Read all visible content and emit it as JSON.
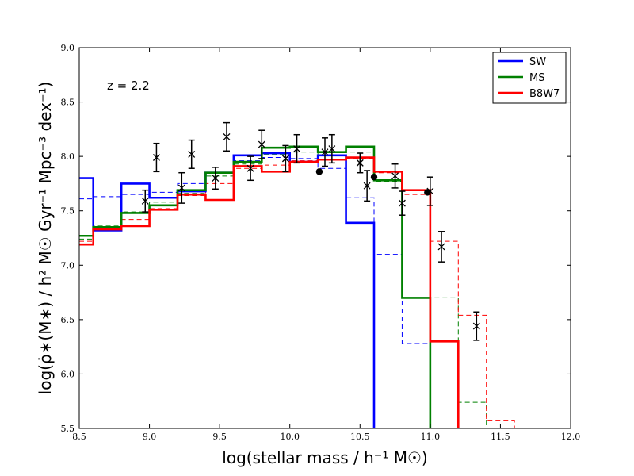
{
  "chart_data": {
    "type": "line",
    "subtype": "step-histogram-with-errorbars",
    "xlabel": "log(stellar mass / h⁻¹ M☉)",
    "ylabel": "log(ρ̇∗(M∗) / h² M☉ Gyr⁻¹ Mpc⁻³ dex⁻¹)",
    "xlim": [
      8.5,
      12.0
    ],
    "ylim": [
      5.5,
      9.0
    ],
    "xticks": [
      "8.5",
      "9.0",
      "9.5",
      "10.0",
      "10.5",
      "11.0",
      "11.5",
      "12.0"
    ],
    "yticks": [
      "5.5",
      "6.0",
      "6.5",
      "7.0",
      "7.5",
      "8.0",
      "8.5",
      "9.0"
    ],
    "annotation": "z = 2.2",
    "legend": {
      "location": "top-right",
      "entries": [
        "SW",
        "MS",
        "B8W7"
      ]
    },
    "series": [
      {
        "name": "SW",
        "style": "solid",
        "color": "#0000ff",
        "bin_edges": [
          8.5,
          8.6,
          8.8,
          9.0,
          9.2,
          9.4,
          9.6,
          9.8,
          10.0,
          10.2,
          10.4,
          10.6
        ],
        "values": [
          7.8,
          7.32,
          7.75,
          7.62,
          7.68,
          7.85,
          8.01,
          8.03,
          7.95,
          8.01,
          7.39
        ]
      },
      {
        "name": "SW-dashed",
        "style": "dashed",
        "color": "#0000ff",
        "bin_edges": [
          8.5,
          8.6,
          8.8,
          9.0,
          9.2,
          9.4,
          9.6,
          9.8,
          10.0,
          10.2,
          10.4,
          10.6,
          10.8,
          11.0
        ],
        "values": [
          7.61,
          7.63,
          7.65,
          7.67,
          7.75,
          7.85,
          7.96,
          7.99,
          7.98,
          7.89,
          7.62,
          7.1,
          6.28
        ]
      },
      {
        "name": "MS",
        "style": "solid",
        "color": "#008000",
        "bin_edges": [
          8.5,
          8.6,
          8.8,
          9.0,
          9.2,
          9.4,
          9.6,
          9.8,
          10.0,
          10.2,
          10.4,
          10.6,
          10.8,
          11.0
        ],
        "values": [
          7.27,
          7.35,
          7.48,
          7.55,
          7.69,
          7.85,
          7.95,
          8.08,
          8.09,
          8.04,
          8.09,
          7.78,
          6.7
        ]
      },
      {
        "name": "MS-dashed",
        "style": "dashed",
        "color": "#008000",
        "bin_edges": [
          8.5,
          8.6,
          8.8,
          9.0,
          9.2,
          9.4,
          9.6,
          9.8,
          10.0,
          10.2,
          10.4,
          10.6,
          10.8,
          11.0,
          11.2,
          11.4
        ],
        "values": [
          7.24,
          7.36,
          7.49,
          7.58,
          7.66,
          7.82,
          7.93,
          8.02,
          8.04,
          8.01,
          8.04,
          7.77,
          7.37,
          6.7,
          5.74
        ]
      },
      {
        "name": "B8W7",
        "style": "solid",
        "color": "#ff0000",
        "bin_edges": [
          8.5,
          8.6,
          8.8,
          9.0,
          9.2,
          9.4,
          9.6,
          9.8,
          10.0,
          10.2,
          10.4,
          10.6,
          10.8,
          11.0,
          11.2
        ],
        "values": [
          7.19,
          7.33,
          7.36,
          7.51,
          7.65,
          7.6,
          7.91,
          7.86,
          7.95,
          7.97,
          7.99,
          7.86,
          7.69,
          6.3
        ]
      },
      {
        "name": "B8W7-dashed",
        "style": "dashed",
        "color": "#ff0000",
        "bin_edges": [
          8.5,
          8.6,
          8.8,
          9.0,
          9.2,
          9.4,
          9.6,
          9.8,
          10.0,
          10.2,
          10.4,
          10.6,
          10.8,
          11.0,
          11.2,
          11.4,
          11.6
        ],
        "values": [
          7.22,
          7.34,
          7.42,
          7.52,
          7.64,
          7.75,
          7.89,
          7.92,
          7.96,
          7.97,
          7.98,
          7.85,
          7.65,
          7.22,
          6.54,
          5.57
        ]
      }
    ],
    "observations_errorbars": [
      {
        "x": 8.97,
        "y": 7.59,
        "err": 0.1
      },
      {
        "x": 9.05,
        "y": 7.99,
        "err": 0.13
      },
      {
        "x": 9.23,
        "y": 7.71,
        "err": 0.14
      },
      {
        "x": 9.3,
        "y": 8.02,
        "err": 0.13
      },
      {
        "x": 9.47,
        "y": 7.8,
        "err": 0.1
      },
      {
        "x": 9.55,
        "y": 8.18,
        "err": 0.13
      },
      {
        "x": 9.72,
        "y": 7.89,
        "err": 0.11
      },
      {
        "x": 9.8,
        "y": 8.11,
        "err": 0.13
      },
      {
        "x": 9.97,
        "y": 7.98,
        "err": 0.12
      },
      {
        "x": 10.05,
        "y": 8.07,
        "err": 0.13
      },
      {
        "x": 10.25,
        "y": 8.04,
        "err": 0.13
      },
      {
        "x": 10.3,
        "y": 8.07,
        "err": 0.13
      },
      {
        "x": 10.5,
        "y": 7.94,
        "err": 0.09
      },
      {
        "x": 10.55,
        "y": 7.73,
        "err": 0.14
      },
      {
        "x": 10.75,
        "y": 7.82,
        "err": 0.11
      },
      {
        "x": 10.8,
        "y": 7.57,
        "err": 0.11
      },
      {
        "x": 11.0,
        "y": 7.68,
        "err": 0.13
      },
      {
        "x": 11.08,
        "y": 7.17,
        "err": 0.14
      },
      {
        "x": 11.33,
        "y": 6.44,
        "err": 0.13
      }
    ],
    "observations_points": [
      {
        "x": 10.21,
        "y": 7.86
      },
      {
        "x": 10.6,
        "y": 7.81
      },
      {
        "x": 10.98,
        "y": 7.67
      }
    ]
  }
}
